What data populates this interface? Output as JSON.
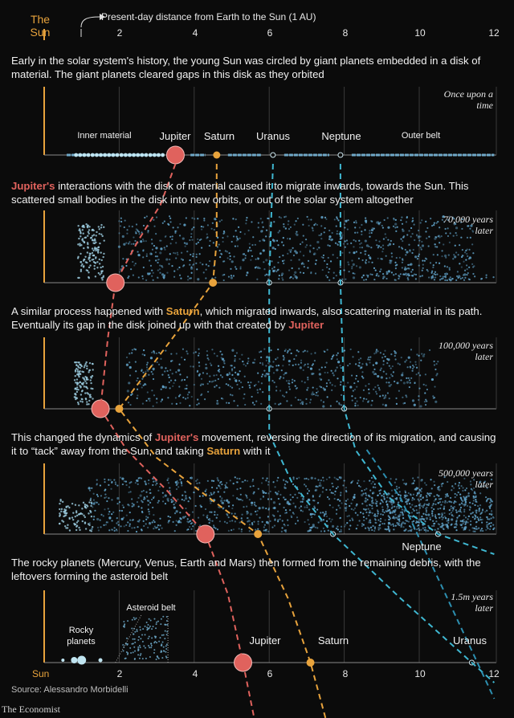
{
  "header": {
    "sun_label": "The\nSun",
    "au_note": "Present-day distance from Earth to the Sun (1 AU)",
    "ticks": [
      "2",
      "4",
      "6",
      "8",
      "10",
      "12"
    ]
  },
  "panels": [
    {
      "time_note": "Once upon a time",
      "caption_parts": [
        "Early in the solar system's history, the young Sun was circled by giant planets embedded in a disk of material. The giant planets cleared gaps in this disk as they orbited"
      ],
      "labels": {
        "inner": "Inner material",
        "jupiter": "Jupiter",
        "saturn": "Saturn",
        "uranus": "Uranus",
        "neptune": "Neptune",
        "outer": "Outer belt"
      }
    },
    {
      "time_note": "70,000 years later",
      "caption_parts": [
        "Jupiter's",
        " interactions with the disk of material caused it to migrate inwards, towards the Sun. This scattered small bodies in the disk into new orbits, or out of the solar system altogether"
      ]
    },
    {
      "time_note": "100,000 years later",
      "caption_parts": [
        "A similar process happened with ",
        "Saturn",
        ", which migrated inwards, also scattering material in its path. Eventually its gap in the disk joined up with that created by ",
        "Jupiter"
      ]
    },
    {
      "time_note": "500,000 years later",
      "caption_parts": [
        "This changed the dynamics of ",
        "Jupiter's",
        " movement, reversing the direction of its migration, and causing it to “tack” away from the Sun, and taking ",
        "Saturn",
        " with it"
      ],
      "labels": {
        "neptune": "Neptune"
      }
    },
    {
      "time_note": "1.5m years later",
      "caption_parts": [
        "The rocky planets (Mercury, Venus, Earth and Mars) then formed from the remaining debris, with the leftovers forming the asteroid belt"
      ],
      "labels": {
        "asteroid": "Asteroid belt",
        "rocky": "Rocky planets",
        "jupiter": "Jupiter",
        "saturn": "Saturn",
        "uranus": "Uranus"
      }
    }
  ],
  "bottom_axis": {
    "sun": "Sun",
    "ticks": [
      "2",
      "4",
      "6",
      "8",
      "10",
      "12"
    ]
  },
  "source": "Source: Alessandro Morbidelli",
  "brand": "The Economist",
  "colors": {
    "sun": "#e8a33c",
    "jupiter": "#e0625d",
    "saturn": "#e8a33c",
    "ice": "#3fb7d1",
    "disk": "#6fa9c9",
    "grid": "#3a3a3a"
  },
  "planet_positions_au": {
    "p1": {
      "jupiter": 3.5,
      "saturn": 4.6,
      "uranus": 6.1,
      "neptune": 7.9
    },
    "p2": {
      "jupiter": 1.9,
      "saturn": 4.5,
      "uranus": 6.0,
      "neptune": 7.9
    },
    "p3": {
      "jupiter": 1.5,
      "saturn": 2.0,
      "uranus": 6.0,
      "neptune": 8.0
    },
    "p4": {
      "jupiter": 4.3,
      "saturn": 5.7,
      "uranus": 7.7,
      "neptune": 10.5
    },
    "p5": {
      "jupiter": 5.3,
      "saturn": 7.1,
      "uranus": 11.4
    }
  }
}
